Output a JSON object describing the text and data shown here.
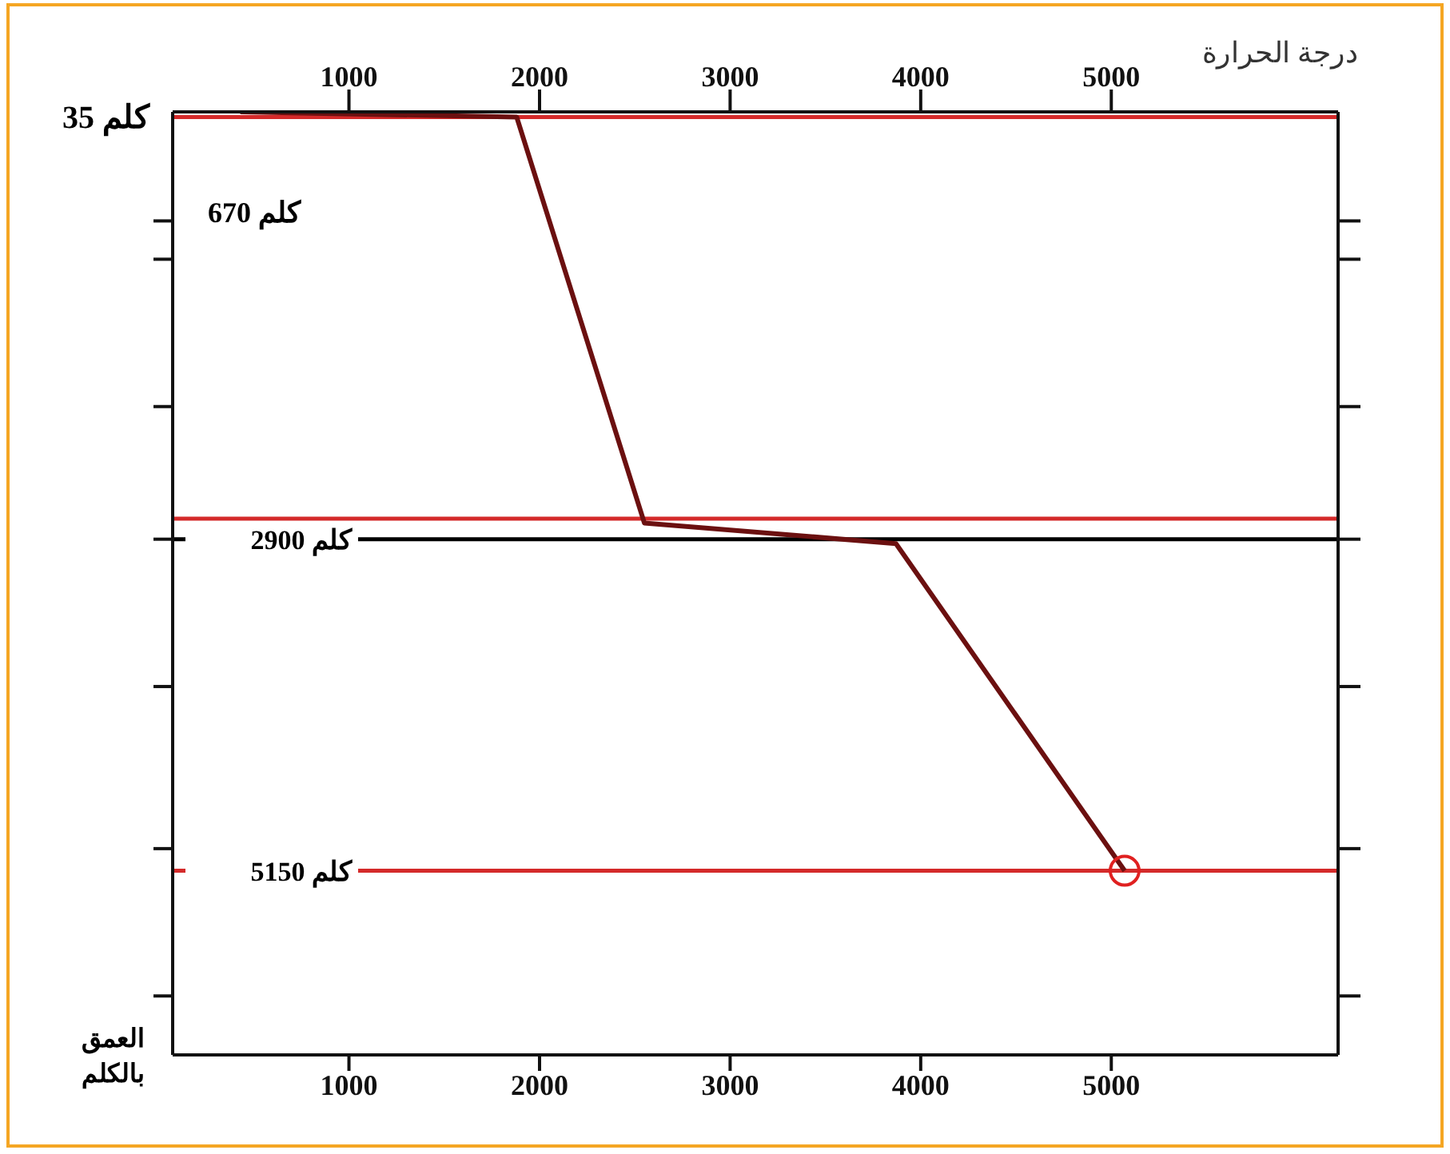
{
  "chart_data": {
    "type": "line",
    "x2label": "درجة الحرارة",
    "ylabel": "العمق بالكلم",
    "annotations": [
      "670 كلم"
    ],
    "xlim": [
      75,
      6190
    ],
    "xticks": [
      1000,
      2000,
      3000,
      4000,
      5000
    ],
    "x2lim": [
      75,
      6190
    ],
    "x2ticks": [
      1000,
      2000,
      3000,
      4000,
      5000
    ],
    "ylim": [
      6400,
      0
    ],
    "yticks": [
      {
        "value": 740,
        "label": null
      },
      {
        "value": 1000,
        "label": null
      },
      {
        "value": 2000,
        "label": null
      },
      {
        "value": 2900,
        "label": null
      },
      {
        "value": 3900,
        "label": null
      },
      {
        "value": 5000,
        "label": null
      },
      {
        "value": 6000,
        "label": null
      }
    ],
    "series": [
      {
        "color": "#6b1010",
        "x": [
          430,
          1880,
          2550,
          3870,
          5070
        ],
        "values": [
          0,
          35,
          2790,
          2930,
          5150
        ],
        "marker": "none"
      },
      {
        "type": "scatter",
        "color": "#e02020",
        "x": [
          5070
        ],
        "values": [
          5150
        ],
        "marker": "circle"
      }
    ],
    "ref_lines": [
      {
        "axis": "y",
        "value": 35,
        "label": "35 كلم",
        "color": "#d42a2a"
      },
      {
        "axis": "y",
        "value": 2760,
        "color": "#d42a2a"
      },
      {
        "axis": "y",
        "value": 2900,
        "label": "2900 كلم",
        "color": "#000000"
      },
      {
        "axis": "y",
        "value": 5150,
        "label": "5150 كلم",
        "color": "#d42a2a"
      }
    ]
  }
}
